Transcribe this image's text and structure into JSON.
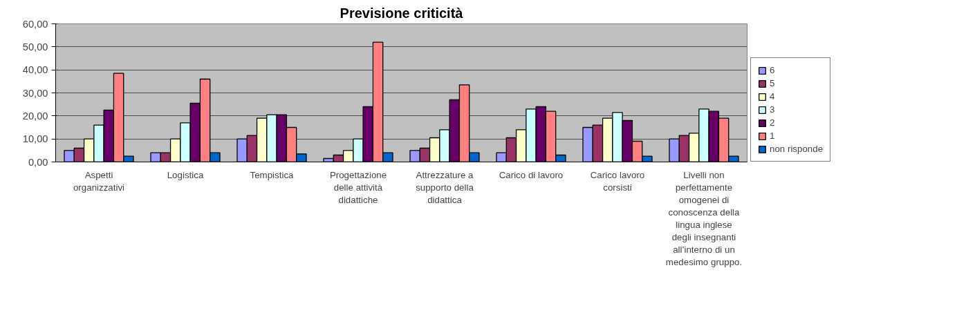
{
  "chart_data": {
    "type": "bar",
    "title": "Previsione criticità",
    "categories": [
      "Aspetti organizzativi",
      "Logistica",
      "Tempistica",
      "Progettazione delle attività didattiche",
      "Attrezzature a supporto della didattica",
      "Carico di lavoro",
      "Carico lavoro corsisti",
      "Livelli non perfettamente omogenei di conoscenza della lingua inglese degli insegnanti all’interno di un medesimo gruppo."
    ],
    "series": [
      {
        "name": "6",
        "color": "#9999ff",
        "values": [
          5,
          4,
          10,
          1.5,
          5,
          4,
          15,
          10
        ]
      },
      {
        "name": "5",
        "color": "#993366",
        "values": [
          6,
          4,
          11.5,
          3,
          6,
          10.5,
          16,
          11.5
        ]
      },
      {
        "name": "4",
        "color": "#ffffcc",
        "values": [
          10,
          10,
          19,
          5,
          10.5,
          14,
          19,
          12.5
        ]
      },
      {
        "name": "3",
        "color": "#ccffff",
        "values": [
          16,
          17,
          20.5,
          10,
          14,
          23,
          21.5,
          23
        ]
      },
      {
        "name": "2",
        "color": "#660066",
        "values": [
          22.5,
          25.5,
          20.5,
          24,
          27,
          24,
          18,
          22
        ]
      },
      {
        "name": "1",
        "color": "#ff8080",
        "values": [
          38.5,
          36,
          15,
          52,
          33.5,
          22,
          9,
          19
        ]
      },
      {
        "name": "non risponde",
        "color": "#0066cc",
        "values": [
          2.5,
          4,
          3.5,
          4,
          4,
          3,
          2.5,
          2.5
        ]
      }
    ],
    "ylim": [
      0,
      60
    ],
    "yticks": [
      {
        "value": 0,
        "label": "0,00"
      },
      {
        "value": 10,
        "label": "10,00"
      },
      {
        "value": 20,
        "label": "20,00"
      },
      {
        "value": 30,
        "label": "30,00"
      },
      {
        "value": 40,
        "label": "40,00"
      },
      {
        "value": 50,
        "label": "50,00"
      },
      {
        "value": 60,
        "label": "60,00"
      }
    ],
    "grid": "y",
    "legend": "right"
  }
}
